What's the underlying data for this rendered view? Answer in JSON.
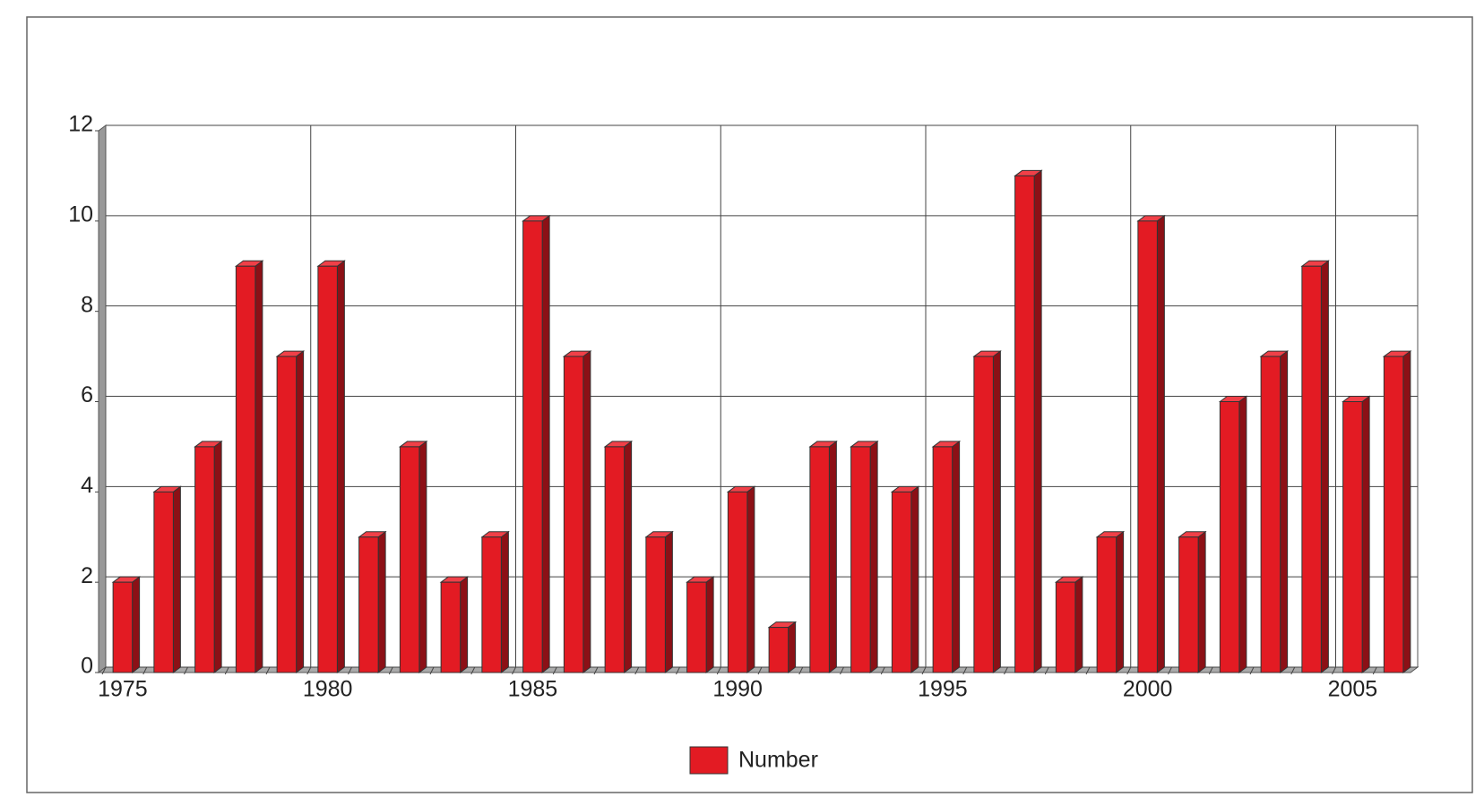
{
  "chart_data": {
    "type": "bar",
    "categories": [
      "1975",
      null,
      null,
      null,
      null,
      "1980",
      null,
      null,
      null,
      null,
      "1985",
      null,
      null,
      null,
      null,
      "1990",
      null,
      null,
      null,
      null,
      "1995",
      null,
      null,
      null,
      null,
      "2000",
      null,
      null,
      null,
      null,
      "2005",
      null
    ],
    "series": [
      {
        "name": "Number",
        "color": "#e31b23",
        "values": [
          2,
          4,
          5,
          9,
          7,
          9,
          3,
          5,
          2,
          3,
          10,
          7,
          5,
          3,
          2,
          4,
          1,
          5,
          5,
          4,
          5,
          7,
          11,
          2,
          3,
          10,
          3,
          6,
          7,
          9,
          6,
          7
        ]
      }
    ],
    "ylim": [
      0,
      12
    ],
    "yticks": [
      0,
      2,
      4,
      6,
      8,
      10,
      12
    ],
    "grid": true,
    "legend": "bottom"
  }
}
